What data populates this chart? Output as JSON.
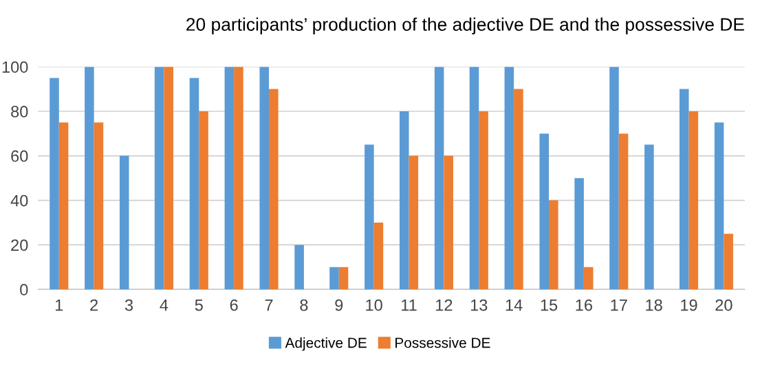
{
  "chart_data": {
    "type": "bar",
    "title": "20 participants’ production of the adjective DE and the possessive DE",
    "categories": [
      "1",
      "2",
      "3",
      "4",
      "5",
      "6",
      "7",
      "8",
      "9",
      "10",
      "11",
      "12",
      "13",
      "14",
      "15",
      "16",
      "17",
      "18",
      "19",
      "20"
    ],
    "series": [
      {
        "name": "Adjective DE",
        "color": "#5b9bd5",
        "values": [
          95,
          100,
          60,
          100,
          95,
          100,
          100,
          20,
          10,
          65,
          80,
          100,
          100,
          100,
          70,
          50,
          100,
          65,
          90,
          75
        ]
      },
      {
        "name": "Possessive DE",
        "color": "#ed7d31",
        "values": [
          75,
          75,
          0,
          100,
          80,
          100,
          90,
          0,
          10,
          30,
          60,
          60,
          80,
          90,
          40,
          10,
          70,
          0,
          80,
          25
        ]
      }
    ],
    "ylim": [
      0,
      100
    ],
    "yticks": [
      0,
      20,
      40,
      60,
      80,
      100
    ],
    "grid": "y",
    "legend": "bottom"
  }
}
